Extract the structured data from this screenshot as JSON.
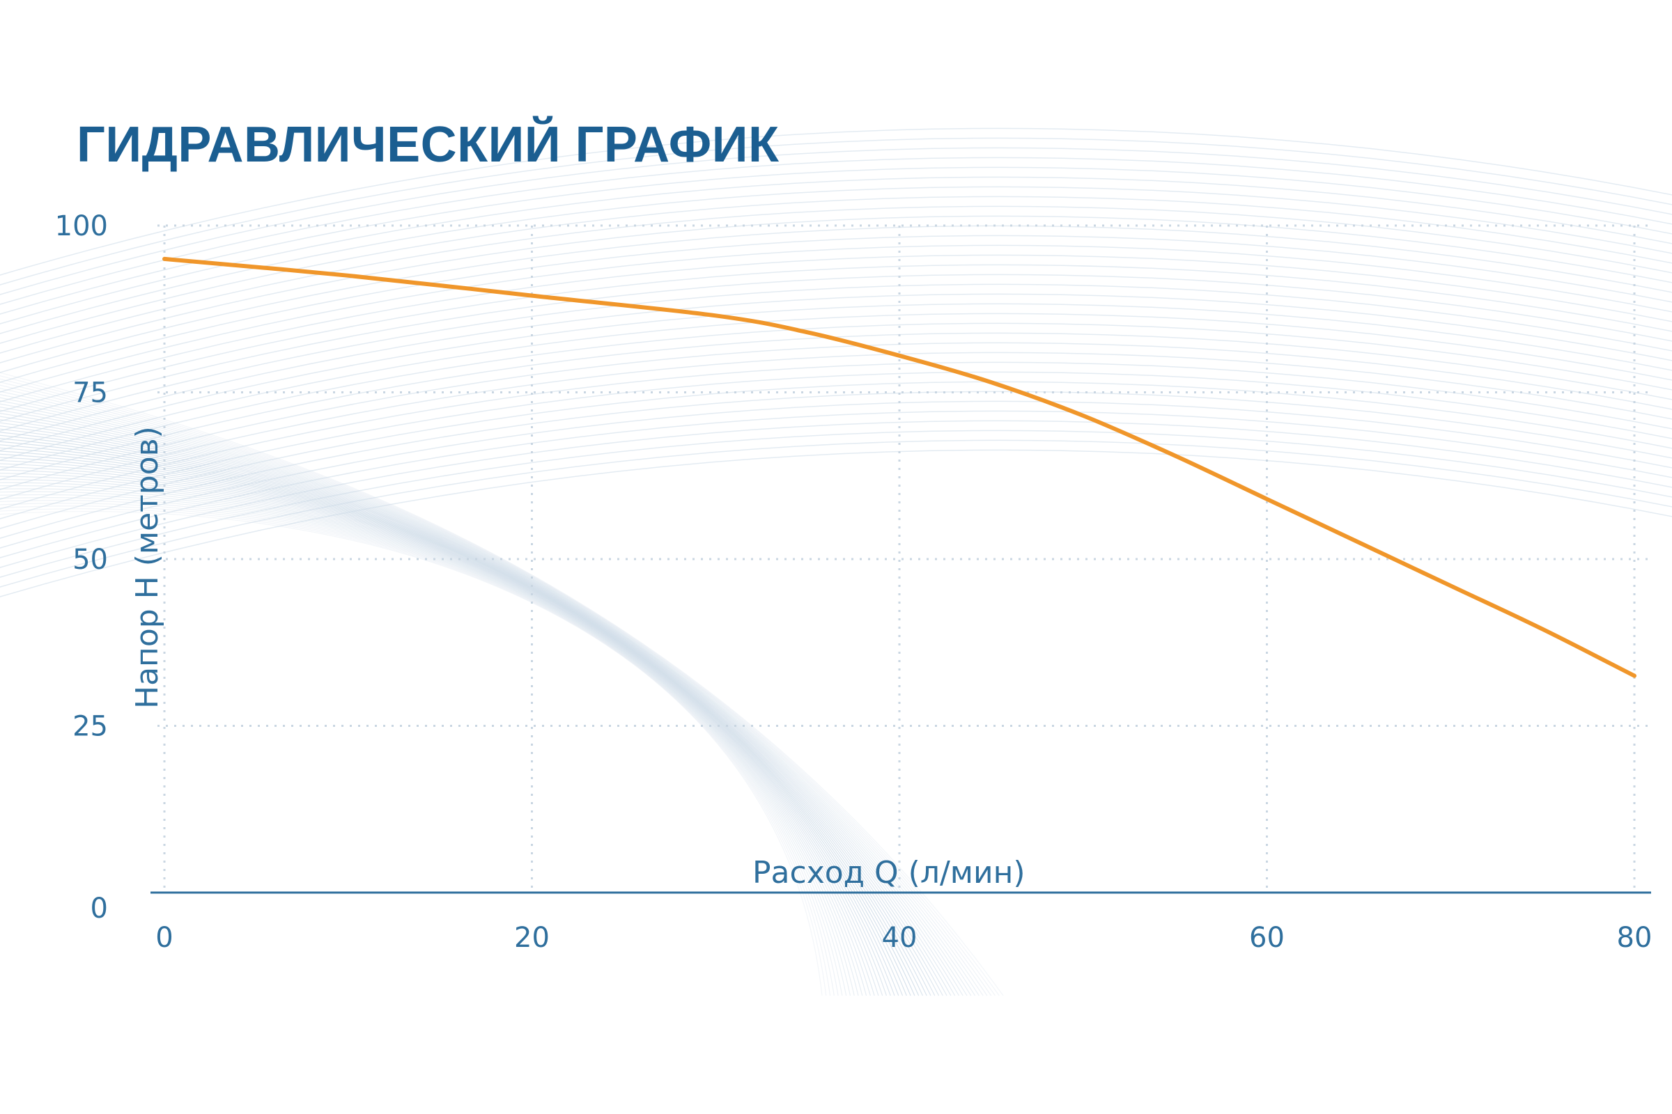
{
  "chart_data": {
    "type": "line",
    "title": "ГИДРАВЛИЧЕСКИЙ ГРАФИК",
    "xlabel": "Расход Q (л/мин)",
    "ylabel": "Напор H (метров)",
    "xlim": [
      0,
      80
    ],
    "ylim": [
      0,
      100
    ],
    "x_ticks": [
      "0",
      "20",
      "40",
      "60",
      "80"
    ],
    "y_ticks": [
      "0",
      "25",
      "50",
      "75",
      "100"
    ],
    "x_tick_values": [
      0,
      20,
      40,
      60,
      80
    ],
    "y_tick_values": [
      0,
      25,
      50,
      75,
      100
    ],
    "grid": true,
    "series": [
      {
        "x": [
          0,
          10,
          20,
          30,
          35,
          40,
          45,
          50,
          55,
          60,
          65,
          70,
          75,
          80
        ],
        "y": [
          95,
          92.5,
          89.5,
          86.5,
          84,
          80.5,
          76.5,
          71.5,
          65.5,
          59,
          52.5,
          46,
          39.5,
          32.5
        ],
        "color": "#f0962a"
      }
    ]
  }
}
